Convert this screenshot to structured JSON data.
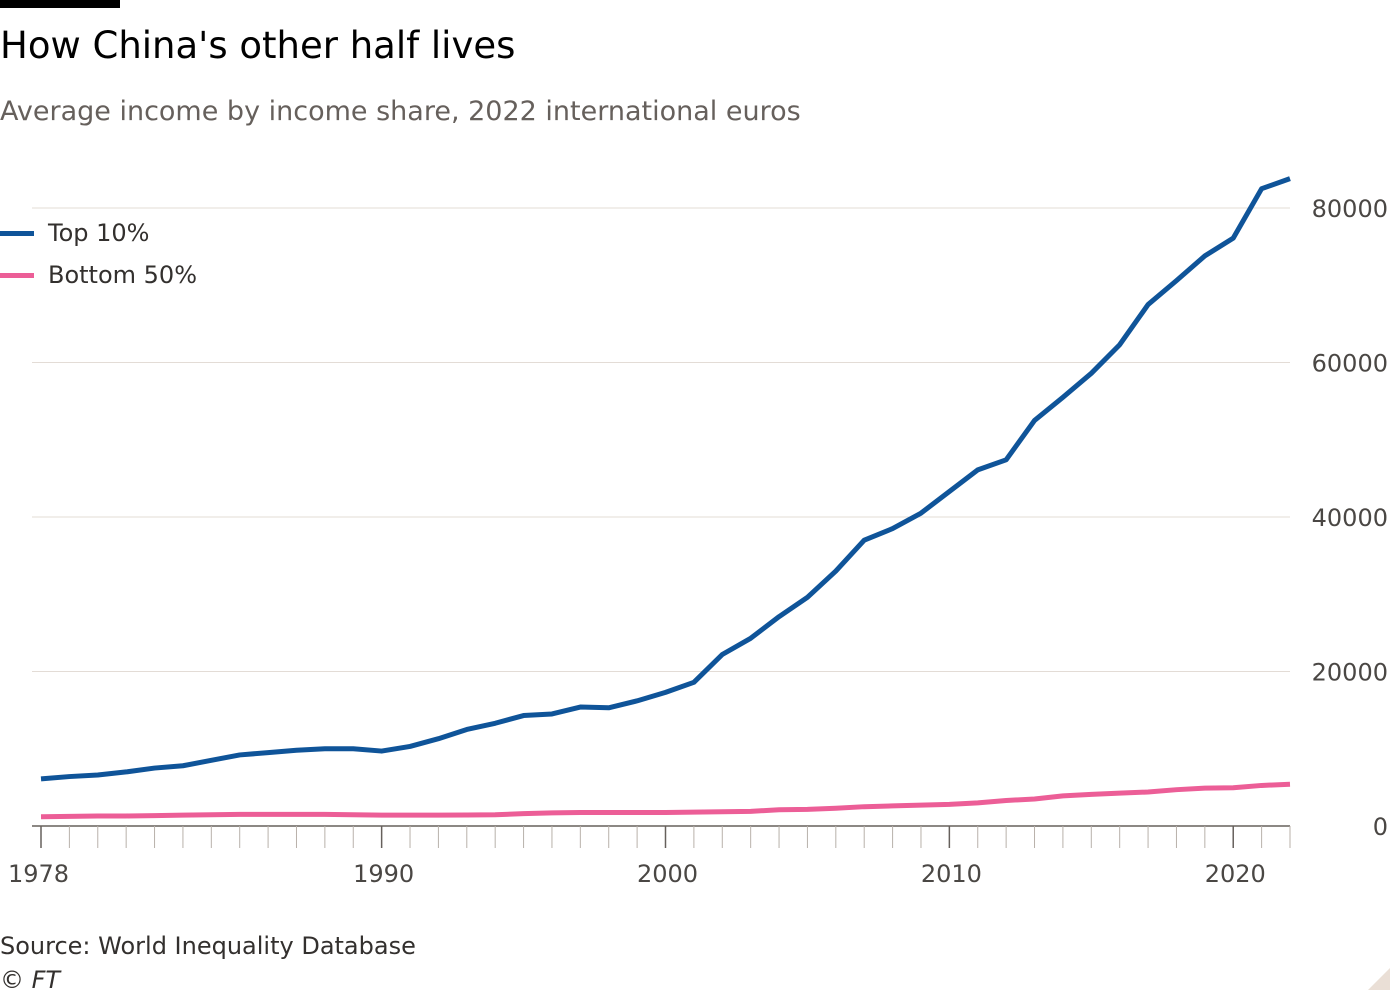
{
  "title": "How China's other half lives",
  "subtitle": "Average income by income share, 2022 international euros",
  "source": "Source: World Inequality Database",
  "copyright": "© FT",
  "chart_data": {
    "type": "line",
    "title": "How China's other half lives",
    "subtitle": "Average income by income share, 2022 international euros",
    "xlabel": "",
    "ylabel": "",
    "x_ticks": [
      1978,
      1990,
      2000,
      2010,
      2020
    ],
    "y_ticks": [
      0,
      20000,
      40000,
      60000,
      80000
    ],
    "xlim": [
      1978,
      2022
    ],
    "ylim": [
      0,
      85000
    ],
    "y_axis_side": "right",
    "grid": true,
    "legend_position": "top-left",
    "x": [
      1978,
      1979,
      1980,
      1981,
      1982,
      1983,
      1984,
      1985,
      1986,
      1987,
      1988,
      1989,
      1990,
      1991,
      1992,
      1993,
      1994,
      1995,
      1996,
      1997,
      1998,
      1999,
      2000,
      2001,
      2002,
      2003,
      2004,
      2005,
      2006,
      2007,
      2008,
      2009,
      2010,
      2011,
      2012,
      2013,
      2014,
      2015,
      2016,
      2017,
      2018,
      2019,
      2020,
      2021,
      2022
    ],
    "series": [
      {
        "name": "Top 10%",
        "color": "#0f5499",
        "values": [
          6100,
          6400,
          6600,
          7000,
          7500,
          7800,
          8500,
          9200,
          9500,
          9800,
          10000,
          10000,
          9700,
          10300,
          11300,
          12500,
          13300,
          14300,
          14500,
          15400,
          15300,
          16200,
          17300,
          18600,
          22200,
          24300,
          27100,
          29600,
          33000,
          37000,
          38500,
          40500,
          43300,
          46100,
          47400,
          52500,
          55500,
          58600,
          62300,
          67500,
          70600,
          73800,
          76100,
          82500,
          83800
        ]
      },
      {
        "name": "Bottom 50%",
        "color": "#ec5e97",
        "values": [
          1200,
          1250,
          1300,
          1300,
          1350,
          1400,
          1450,
          1500,
          1500,
          1500,
          1500,
          1450,
          1400,
          1400,
          1400,
          1420,
          1450,
          1600,
          1700,
          1750,
          1750,
          1750,
          1750,
          1800,
          1850,
          1900,
          2100,
          2150,
          2300,
          2500,
          2600,
          2700,
          2800,
          3000,
          3300,
          3500,
          3900,
          4100,
          4250,
          4400,
          4700,
          4900,
          4950,
          5250,
          5400
        ]
      }
    ]
  }
}
